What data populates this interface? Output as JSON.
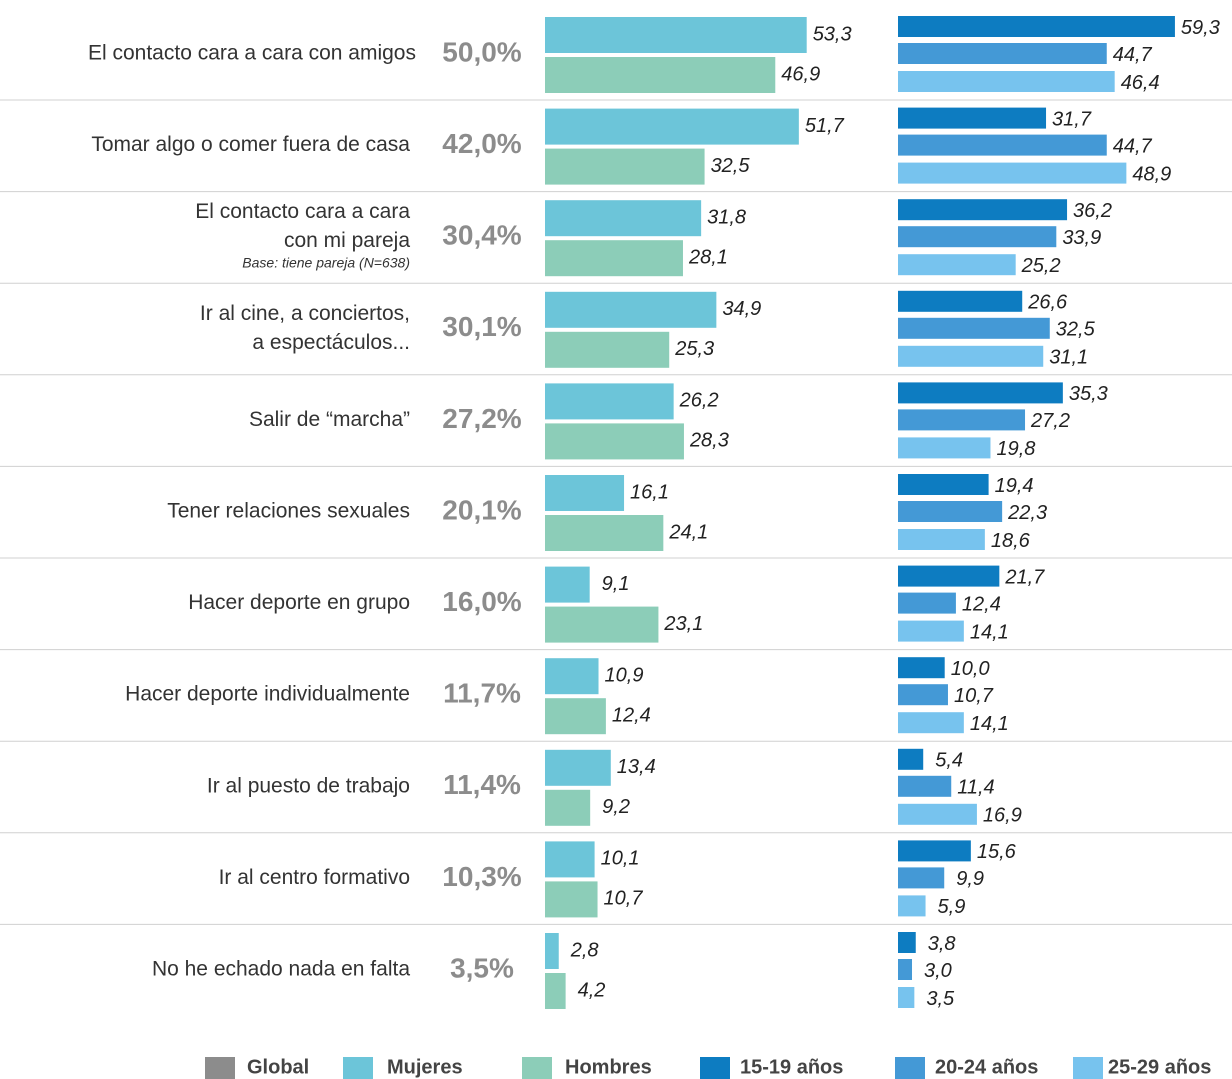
{
  "chart_data": {
    "type": "bar",
    "categories": [
      [
        "El contacto cara a cara con amigos"
      ],
      [
        "Tomar algo o comer fuera de casa"
      ],
      [
        "El contacto cara a cara",
        "con mi pareja"
      ],
      [
        "Ir al cine, a conciertos,",
        "a espectáculos..."
      ],
      [
        "Salir de “marcha”"
      ],
      [
        "Tener relaciones sexuales"
      ],
      [
        "Hacer deporte en grupo"
      ],
      [
        "Hacer deporte individualmente"
      ],
      [
        "Ir al puesto de trabajo"
      ],
      [
        "Ir al centro formativo"
      ],
      [
        "No he echado nada en falta"
      ]
    ],
    "annotations": {
      "2": "Base: tiene pareja (N=638)"
    },
    "series": [
      {
        "name": "Global",
        "color": "#8c8c8c",
        "values": [
          50.0,
          42.0,
          30.4,
          30.1,
          27.2,
          20.1,
          16.0,
          11.7,
          11.4,
          10.3,
          3.5
        ],
        "value_labels": [
          "50,0%",
          "42,0%",
          "30,4%",
          "30,1%",
          "27,2%",
          "20,1%",
          "16,0%",
          "11,7%",
          "11,4%",
          "10,3%",
          "3,5%"
        ]
      },
      {
        "name": "Mujeres",
        "color": "#6cc5d9",
        "values": [
          53.3,
          51.7,
          31.8,
          34.9,
          26.2,
          16.1,
          9.1,
          10.9,
          13.4,
          10.1,
          2.8
        ],
        "value_labels": [
          "53,3",
          "51,7",
          "31,8",
          "34,9",
          "26,2",
          "16,1",
          "9,1",
          "10,9",
          "13,4",
          "10,1",
          "2,8"
        ]
      },
      {
        "name": "Hombres",
        "color": "#8ccdb8",
        "values": [
          46.9,
          32.5,
          28.1,
          25.3,
          28.3,
          24.1,
          23.1,
          12.4,
          9.2,
          10.7,
          4.2
        ],
        "value_labels": [
          "46,9",
          "32,5",
          "28,1",
          "25,3",
          "28,3",
          "24,1",
          "23,1",
          "12,4",
          "9,2",
          "10,7",
          "4,2"
        ]
      },
      {
        "name": "15-19 años",
        "color": "#0d7cc1",
        "values": [
          59.3,
          31.7,
          36.2,
          26.6,
          35.3,
          19.4,
          21.7,
          10.0,
          5.4,
          15.6,
          3.8
        ],
        "value_labels": [
          "59,3",
          "31,7",
          "36,2",
          "26,6",
          "35,3",
          "19,4",
          "21,7",
          "10,0",
          "5,4",
          "15,6",
          "3,8"
        ]
      },
      {
        "name": "20-24 años",
        "color": "#4499d6",
        "values": [
          44.7,
          44.7,
          33.9,
          32.5,
          27.2,
          22.3,
          12.4,
          10.7,
          11.4,
          9.9,
          3.0
        ],
        "value_labels": [
          "44,7",
          "44,7",
          "33,9",
          "32,5",
          "27,2",
          "22,3",
          "12,4",
          "10,7",
          "11,4",
          "9,9",
          "3,0"
        ]
      },
      {
        "name": "25-29 años",
        "color": "#77c3ee",
        "values": [
          46.4,
          48.9,
          25.2,
          31.1,
          19.8,
          18.6,
          14.1,
          14.1,
          16.9,
          5.9,
          3.5
        ],
        "value_labels": [
          "46,4",
          "48,9",
          "25,2",
          "31,1",
          "19,8",
          "18,6",
          "14,1",
          "14,1",
          "16,9",
          "5,9",
          "3,5"
        ]
      }
    ]
  }
}
